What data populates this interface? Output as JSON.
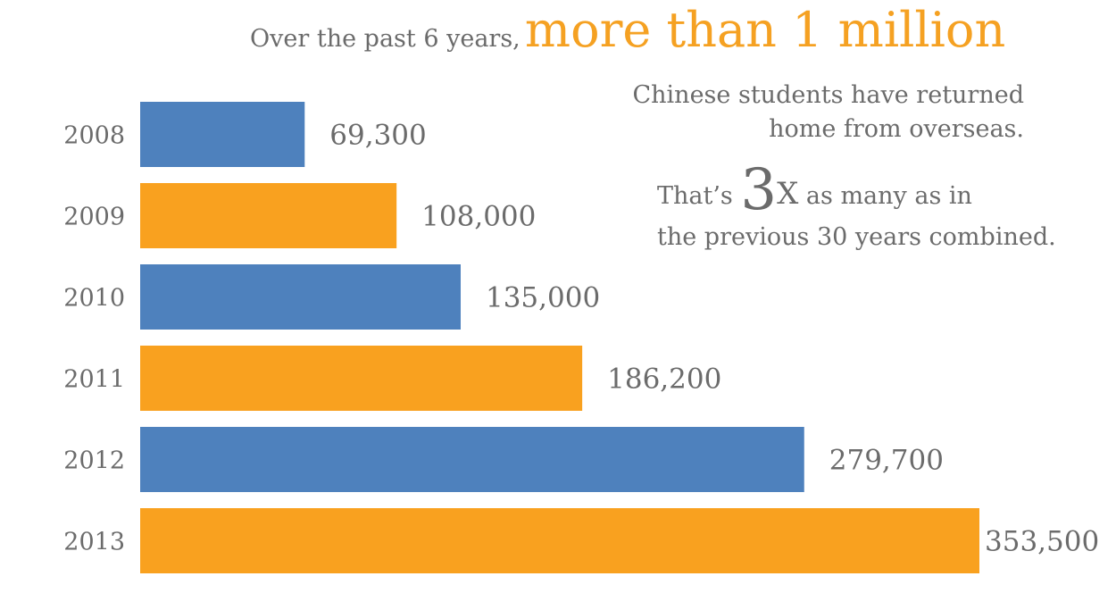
{
  "headline": {
    "lead": "Over the past 6 years,",
    "emphasis": "more than 1 million"
  },
  "note": {
    "line1": "Chinese students have returned",
    "line2": "home from overseas.",
    "prefix": "That’s",
    "multiplier": "3",
    "multiplier_x": "X",
    "suffix": "as many as in",
    "line4": "the previous 30 years combined."
  },
  "chart_data": {
    "type": "bar",
    "orientation": "horizontal",
    "categories": [
      "2008",
      "2009",
      "2010",
      "2011",
      "2012",
      "2013"
    ],
    "values": [
      69300,
      108000,
      135000,
      186200,
      279700,
      353500
    ],
    "value_labels": [
      "69,300",
      "108,000",
      "135,000",
      "186,200",
      "279,700",
      "353,500"
    ],
    "colors": [
      "#4e81bd",
      "#f9a11f",
      "#4e81bd",
      "#f9a11f",
      "#4e81bd",
      "#f9a11f"
    ],
    "xlim": [
      0,
      353500
    ],
    "grid": false,
    "legend": "none"
  }
}
